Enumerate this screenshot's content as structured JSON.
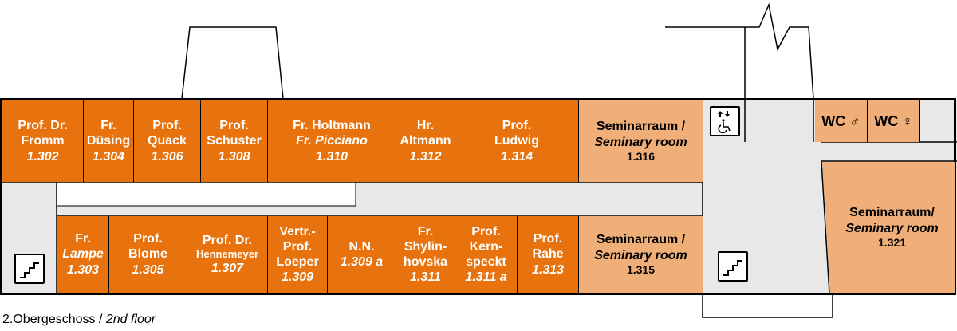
{
  "colors": {
    "office": "#e8730e",
    "seminar": "#f0af78",
    "corridor": "#e8e8e8",
    "wall": "#000000"
  },
  "rooms_north": [
    {
      "id": "r1302",
      "lines": [
        "Prof. Dr.",
        "Fromm"
      ],
      "number": "1.302"
    },
    {
      "id": "r1304",
      "lines": [
        "Fr.",
        "Düsing"
      ],
      "number": "1.304"
    },
    {
      "id": "r1306",
      "lines": [
        "Prof.",
        "Quack"
      ],
      "number": "1.306"
    },
    {
      "id": "r1308",
      "lines": [
        "Prof.",
        "Schuster"
      ],
      "number": "1.308"
    },
    {
      "id": "r1310",
      "lines": [
        "Fr. Holtmann"
      ],
      "italic_line": "Fr. Picciano",
      "number": "1.310"
    },
    {
      "id": "r1312",
      "lines": [
        "Hr.",
        "Altmann"
      ],
      "number": "1.312"
    },
    {
      "id": "r1314",
      "lines": [
        "Prof.",
        "Ludwig"
      ],
      "number": "1.314"
    }
  ],
  "rooms_south": [
    {
      "id": "r1303",
      "lines": [
        "Fr."
      ],
      "italic_line": "Lampe",
      "number": "1.303"
    },
    {
      "id": "r1305",
      "lines": [
        "Prof.",
        "Blome"
      ],
      "number": "1.305"
    },
    {
      "id": "r1307",
      "lines": [
        "Prof. Dr."
      ],
      "small_line": "Hennemeyer",
      "number": "1.307"
    },
    {
      "id": "r1309",
      "lines": [
        "Vertr.-",
        "Prof.",
        "Loeper"
      ],
      "number": "1.309"
    },
    {
      "id": "r1309a",
      "lines": [
        "N.N."
      ],
      "number": "1.309 a"
    },
    {
      "id": "r1311",
      "lines": [
        "Fr.",
        "Shylin-",
        "hovska"
      ],
      "number": "1.311"
    },
    {
      "id": "r1311a",
      "lines": [
        "Prof.",
        "Kern-",
        "speckt"
      ],
      "number": "1.311 a"
    },
    {
      "id": "r1313",
      "lines": [
        "Prof.",
        "Rahe"
      ],
      "number": "1.313"
    }
  ],
  "seminar_rooms": [
    {
      "id": "s1316",
      "label": "Seminarraum /",
      "label_en": "Seminary room",
      "number": "1.316"
    },
    {
      "id": "s1315",
      "label": "Seminarraum /",
      "label_en": "Seminary room",
      "number": "1.315"
    },
    {
      "id": "s1321",
      "label": "Seminarraum/",
      "label_en": "Seminary room",
      "number": "1.321"
    }
  ],
  "wc": {
    "male": "WC ♂",
    "female": "WC ♀"
  },
  "icons": {
    "stairs": "stairs-icon",
    "elevator": "elevator-icon",
    "wheelchair": "wheelchair-icon"
  },
  "caption": {
    "de": "2.Obergeschoss / ",
    "en": "2nd floor"
  }
}
